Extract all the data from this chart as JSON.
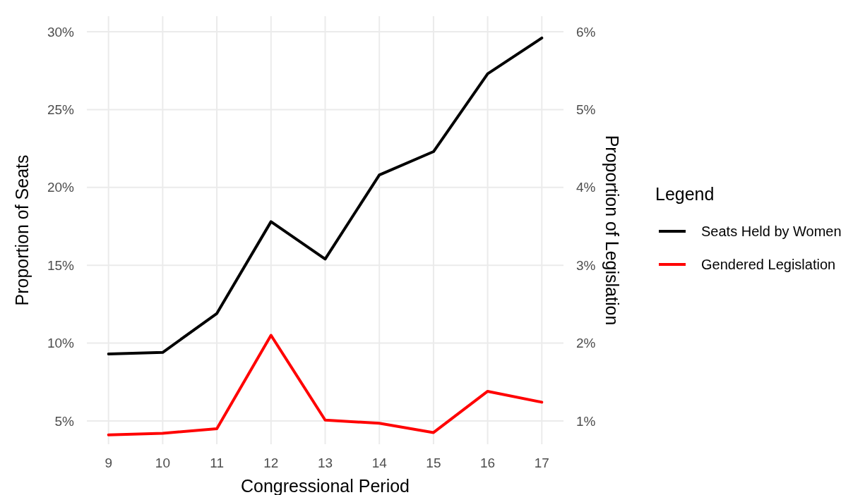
{
  "chart_data": {
    "type": "line",
    "xlabel": "Congressional Period",
    "ylabel": "Proportion of Seats",
    "y2label": "Proportion of Legislation",
    "legend_title": "Legend",
    "legend": "right",
    "grid": true,
    "line_style": "solid",
    "marker": "none",
    "x": [
      9,
      10,
      11,
      12,
      13,
      14,
      15,
      16,
      17
    ],
    "xlim": [
      8.6,
      17.4
    ],
    "xticks": [
      9,
      10,
      11,
      12,
      13,
      14,
      15,
      16,
      17
    ],
    "ylim": [
      3.5,
      31
    ],
    "yticks": [
      {
        "value": 5,
        "label": "5%"
      },
      {
        "value": 10,
        "label": "10%"
      },
      {
        "value": 15,
        "label": "15%"
      },
      {
        "value": 20,
        "label": "20%"
      },
      {
        "value": 25,
        "label": "25%"
      },
      {
        "value": 30,
        "label": "30%"
      }
    ],
    "y2lim": [
      0.7,
      6.2
    ],
    "y2ticks": [
      {
        "value": 1,
        "label": "1%"
      },
      {
        "value": 2,
        "label": "2%"
      },
      {
        "value": 3,
        "label": "3%"
      },
      {
        "value": 4,
        "label": "4%"
      },
      {
        "value": 5,
        "label": "5%"
      },
      {
        "value": 6,
        "label": "6%"
      }
    ],
    "series": [
      {
        "name": "Seats Held by Women",
        "color": "#000000",
        "values": [
          9.3,
          9.4,
          11.9,
          17.8,
          15.4,
          20.8,
          22.3,
          27.3,
          29.6
        ]
      },
      {
        "name": "Gendered Legislation",
        "color": "#ff0000",
        "axis": "y2",
        "values": [
          0.82,
          0.84,
          0.9,
          2.1,
          1.01,
          0.97,
          0.85,
          1.38,
          1.24
        ]
      }
    ]
  }
}
